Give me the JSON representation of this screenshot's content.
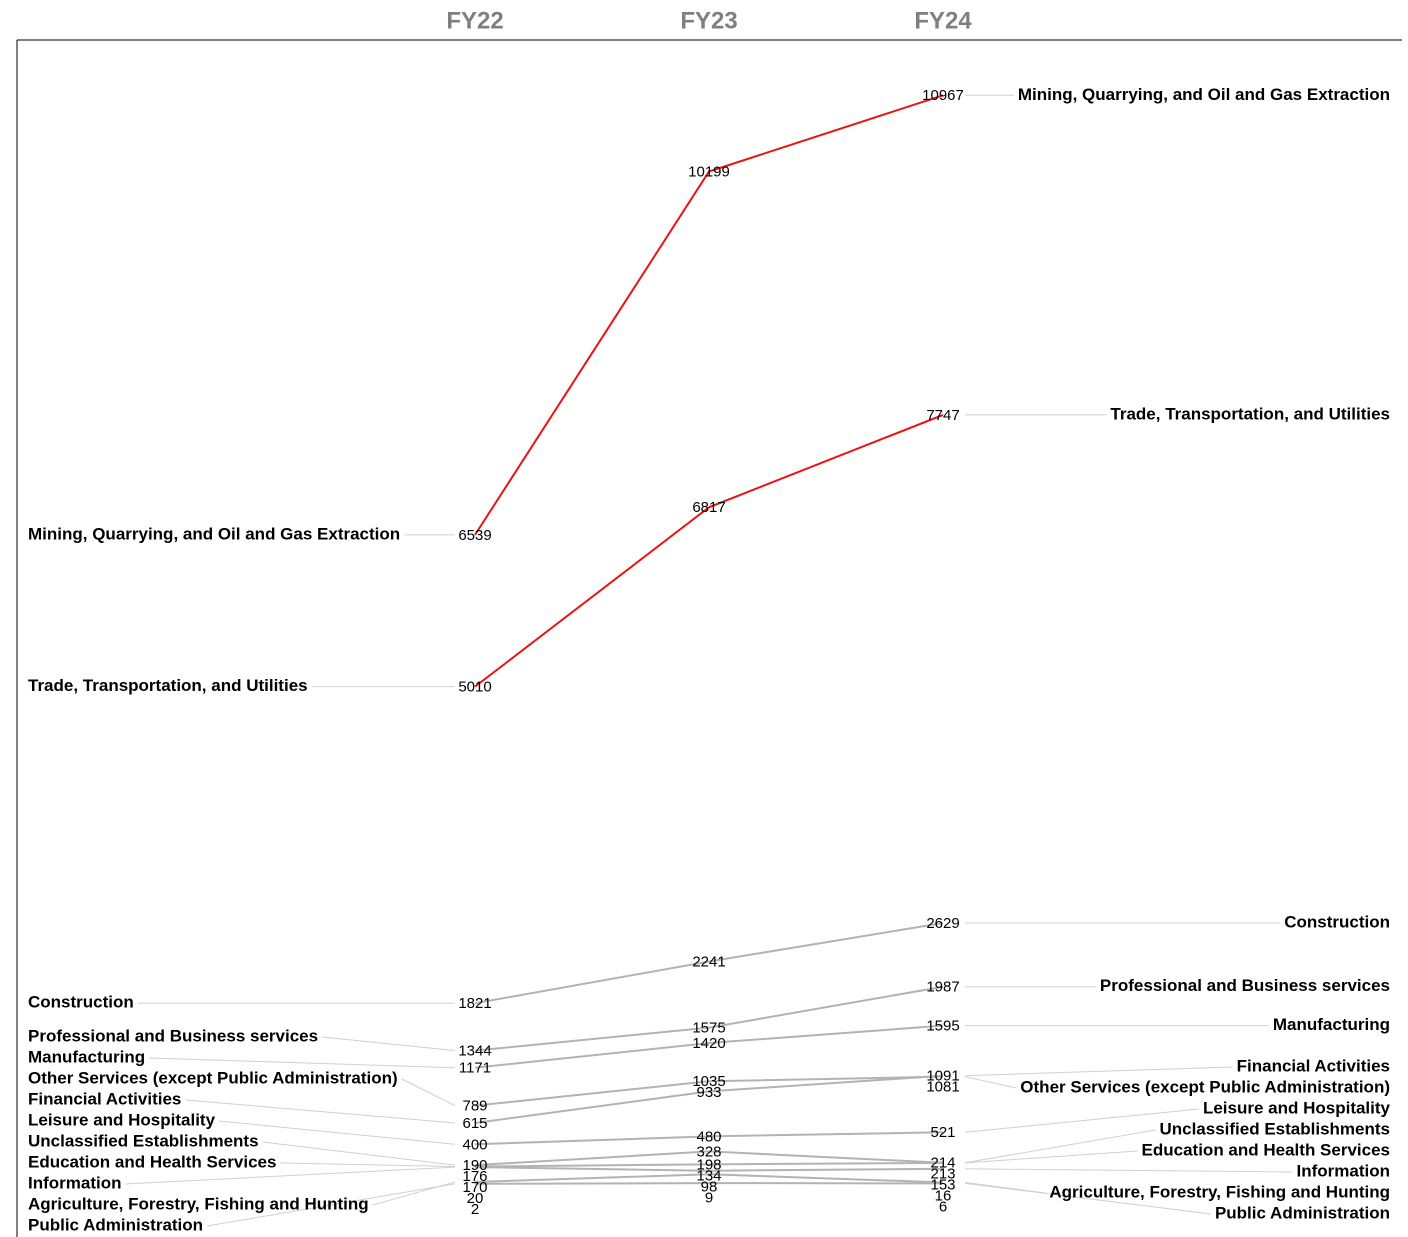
{
  "chart_data": {
    "type": "slope",
    "categories": [
      "FY22",
      "FY23",
      "FY24"
    ],
    "ylim": [
      0,
      11000
    ],
    "series": [
      {
        "name": "Mining, Quarrying, and Oil and Gas Extraction",
        "color": "#ee1111",
        "values": [
          6539,
          10199,
          10967
        ]
      },
      {
        "name": "Trade, Transportation, and Utilities",
        "color": "#ee1111",
        "values": [
          5010,
          6817,
          7747
        ]
      },
      {
        "name": "Construction",
        "color": "#b3b3b3",
        "values": [
          1821,
          2241,
          2629
        ]
      },
      {
        "name": "Professional and Business services",
        "color": "#b3b3b3",
        "values": [
          1344,
          1575,
          1987
        ]
      },
      {
        "name": "Manufacturing",
        "color": "#b3b3b3",
        "values": [
          1171,
          1420,
          1595
        ]
      },
      {
        "name": "Other Services (except Public Administration)",
        "color": "#b3b3b3",
        "values": [
          789,
          1035,
          1081
        ]
      },
      {
        "name": "Financial Activities",
        "color": "#b3b3b3",
        "values": [
          615,
          933,
          1091
        ]
      },
      {
        "name": "Leisure and Hospitality",
        "color": "#b3b3b3",
        "values": [
          400,
          480,
          521
        ]
      },
      {
        "name": "Unclassified Establishments",
        "color": "#b3b3b3",
        "values": [
          190,
          328,
          214
        ]
      },
      {
        "name": "Education and Health Services",
        "color": "#b3b3b3",
        "values": [
          176,
          198,
          213
        ]
      },
      {
        "name": "Information",
        "color": "#b3b3b3",
        "values": [
          170,
          134,
          153
        ]
      },
      {
        "name": "Agriculture, Forestry, Fishing and Hunting",
        "color": "#b3b3b3",
        "values": [
          20,
          98,
          16
        ]
      },
      {
        "name": "Public Administration",
        "color": "#b3b3b3",
        "values": [
          2,
          9,
          6
        ]
      }
    ]
  }
}
